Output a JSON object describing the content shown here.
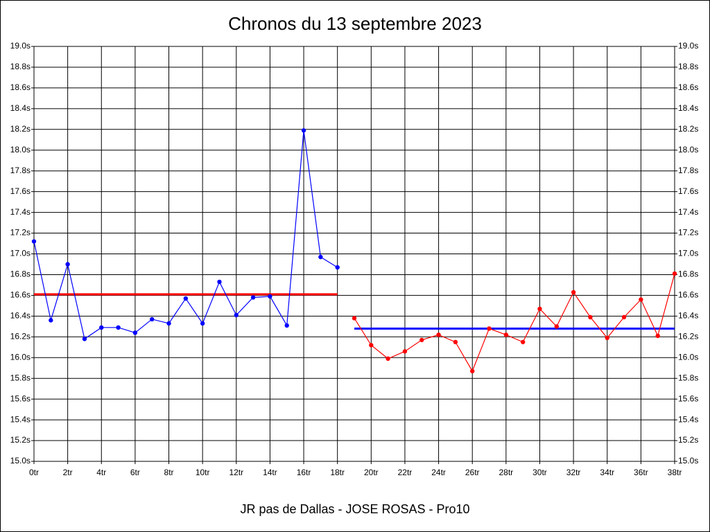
{
  "chart_data": {
    "type": "line",
    "title": "Chronos du 13 septembre 2023",
    "x_label": "JR pas de Dallas - JOSE ROSAS - Pro10",
    "xlim": [
      0,
      38
    ],
    "xticks": [
      {
        "value": 0,
        "label": "0tr"
      },
      {
        "value": 2,
        "label": "2tr"
      },
      {
        "value": 4,
        "label": "4tr"
      },
      {
        "value": 6,
        "label": "6tr"
      },
      {
        "value": 8,
        "label": "8tr"
      },
      {
        "value": 10,
        "label": "10tr"
      },
      {
        "value": 12,
        "label": "12tr"
      },
      {
        "value": 14,
        "label": "14tr"
      },
      {
        "value": 16,
        "label": "16tr"
      },
      {
        "value": 18,
        "label": "18tr"
      },
      {
        "value": 20,
        "label": "20tr"
      },
      {
        "value": 22,
        "label": "22tr"
      },
      {
        "value": 24,
        "label": "24tr"
      },
      {
        "value": 26,
        "label": "26tr"
      },
      {
        "value": 28,
        "label": "28tr"
      },
      {
        "value": 30,
        "label": "30tr"
      },
      {
        "value": 32,
        "label": "32tr"
      },
      {
        "value": 34,
        "label": "34tr"
      },
      {
        "value": 36,
        "label": "36tr"
      },
      {
        "value": 38,
        "label": "38tr"
      }
    ],
    "ylim": [
      15.0,
      19.0
    ],
    "yticks": [
      {
        "value": 15.0,
        "label": "15.0s"
      },
      {
        "value": 15.2,
        "label": "15.2s"
      },
      {
        "value": 15.4,
        "label": "15.4s"
      },
      {
        "value": 15.6,
        "label": "15.6s"
      },
      {
        "value": 15.8,
        "label": "15.8s"
      },
      {
        "value": 16.0,
        "label": "16.0s"
      },
      {
        "value": 16.2,
        "label": "16.2s"
      },
      {
        "value": 16.4,
        "label": "16.4s"
      },
      {
        "value": 16.6,
        "label": "16.6s"
      },
      {
        "value": 16.8,
        "label": "16.8s"
      },
      {
        "value": 17.0,
        "label": "17.0s"
      },
      {
        "value": 17.2,
        "label": "17.2s"
      },
      {
        "value": 17.4,
        "label": "17.4s"
      },
      {
        "value": 17.6,
        "label": "17.6s"
      },
      {
        "value": 17.8,
        "label": "17.8s"
      },
      {
        "value": 18.0,
        "label": "18.0s"
      },
      {
        "value": 18.2,
        "label": "18.2s"
      },
      {
        "value": 18.4,
        "label": "18.4s"
      },
      {
        "value": 18.6,
        "label": "18.6s"
      },
      {
        "value": 18.8,
        "label": "18.8s"
      },
      {
        "value": 19.0,
        "label": "19.0s"
      }
    ],
    "grid": true,
    "series": [
      {
        "color": "#0000ff",
        "x": [
          0,
          1,
          2,
          3,
          4,
          5,
          6,
          7,
          8,
          9,
          10,
          11,
          12,
          13,
          14,
          15,
          16,
          17,
          18
        ],
        "values": [
          17.12,
          16.36,
          16.9,
          16.18,
          16.29,
          16.29,
          16.24,
          16.37,
          16.33,
          16.57,
          16.33,
          16.73,
          16.41,
          16.58,
          16.59,
          16.31,
          18.19,
          16.97,
          16.87
        ]
      },
      {
        "color": "#ff0000",
        "x": [
          19,
          20,
          21,
          22,
          23,
          24,
          25,
          26,
          27,
          28,
          29,
          30,
          31,
          32,
          33,
          34,
          35,
          36,
          37,
          38
        ],
        "values": [
          16.38,
          16.12,
          15.99,
          16.06,
          16.17,
          16.22,
          16.15,
          15.87,
          16.28,
          16.22,
          16.15,
          16.47,
          16.3,
          16.63,
          16.39,
          16.19,
          16.39,
          16.56,
          16.21,
          16.81
        ]
      }
    ],
    "reference_lines": [
      {
        "color": "#ff0000",
        "value": 16.61,
        "x": [
          0,
          18
        ]
      },
      {
        "color": "#0000ff",
        "value": 16.28,
        "x": [
          19,
          38
        ]
      }
    ]
  }
}
